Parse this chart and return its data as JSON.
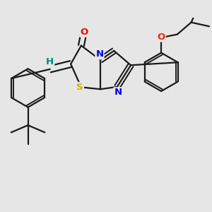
{
  "background_color": "#e6e6e6",
  "bond_color": "#1a1a1a",
  "atom_colors": {
    "O": "#ff0000",
    "N": "#0000ee",
    "S": "#bbbb00",
    "H": "#008888",
    "O2": "#ff2200",
    "C": "#1a1a1a"
  },
  "bond_width": 1.6,
  "figsize": [
    3.0,
    3.0
  ],
  "dpi": 100,
  "xlim": [
    -2.6,
    2.6
  ],
  "ylim": [
    -2.4,
    2.0
  ]
}
